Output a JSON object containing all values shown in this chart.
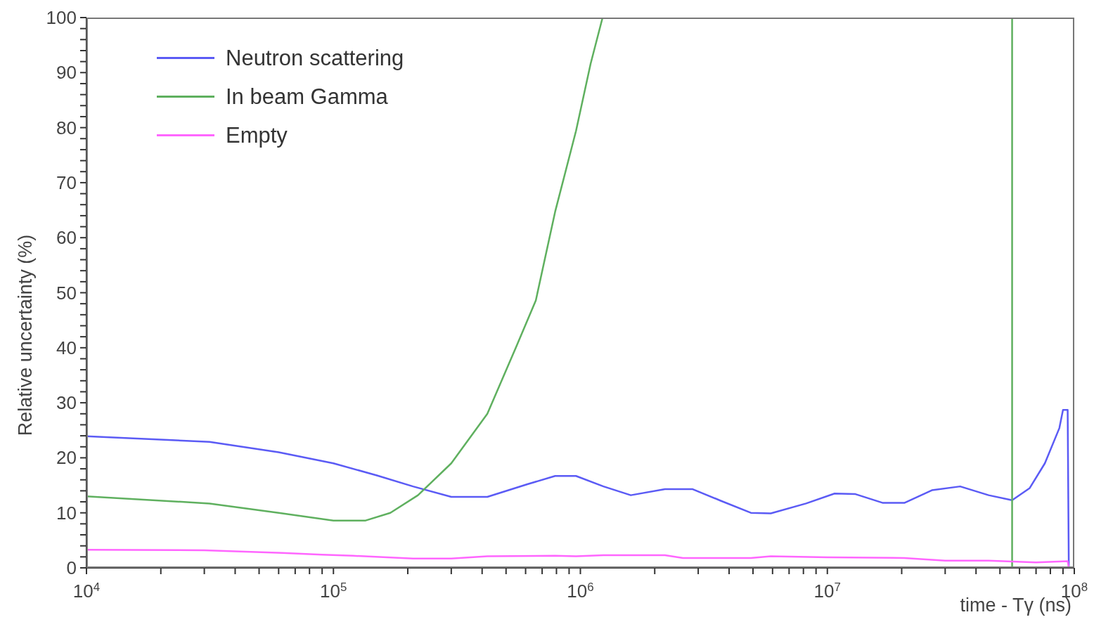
{
  "chart_data": {
    "type": "line",
    "xlabel": "time - Tγ (ns)",
    "ylabel": "Relative uncertainty (%)",
    "log": "x",
    "legend": "top left",
    "marker": "none",
    "line_style": "solid",
    "xlim": [
      10000,
      100000000
    ],
    "ylim": [
      0,
      100
    ],
    "xticks": [
      {
        "value": 10000,
        "label": "10$^{4}$"
      },
      {
        "value": 20000,
        "label": null
      },
      {
        "value": 30000,
        "label": null
      },
      {
        "value": 40000,
        "label": null
      },
      {
        "value": 50000,
        "label": null
      },
      {
        "value": 60000,
        "label": null
      },
      {
        "value": 70000,
        "label": null
      },
      {
        "value": 80000,
        "label": null
      },
      {
        "value": 90000,
        "label": null
      },
      {
        "value": 100000,
        "label": "10$^{5}$"
      },
      {
        "value": 200000,
        "label": null
      },
      {
        "value": 300000,
        "label": null
      },
      {
        "value": 400000,
        "label": null
      },
      {
        "value": 500000,
        "label": null
      },
      {
        "value": 600000,
        "label": null
      },
      {
        "value": 700000,
        "label": null
      },
      {
        "value": 800000,
        "label": null
      },
      {
        "value": 900000,
        "label": null
      },
      {
        "value": 1000000,
        "label": "10$^{6}$"
      },
      {
        "value": 2000000,
        "label": null
      },
      {
        "value": 3000000,
        "label": null
      },
      {
        "value": 4000000,
        "label": null
      },
      {
        "value": 5000000,
        "label": null
      },
      {
        "value": 6000000,
        "label": null
      },
      {
        "value": 7000000,
        "label": null
      },
      {
        "value": 8000000,
        "label": null
      },
      {
        "value": 9000000,
        "label": null
      },
      {
        "value": 10000000,
        "label": "10$^{7}$"
      },
      {
        "value": 20000000,
        "label": null
      },
      {
        "value": 30000000,
        "label": null
      },
      {
        "value": 40000000,
        "label": null
      },
      {
        "value": 50000000,
        "label": null
      },
      {
        "value": 60000000,
        "label": null
      },
      {
        "value": 70000000,
        "label": null
      },
      {
        "value": 80000000,
        "label": null
      },
      {
        "value": 90000000,
        "label": null
      },
      {
        "value": 100000000,
        "label": "10$^{8}$"
      }
    ],
    "yticks": [
      0,
      {
        "value": 2,
        "label": null
      },
      {
        "value": 4,
        "label": null
      },
      {
        "value": 6,
        "label": null
      },
      {
        "value": 8,
        "label": null
      },
      10,
      {
        "value": 12,
        "label": null
      },
      {
        "value": 14,
        "label": null
      },
      {
        "value": 16,
        "label": null
      },
      {
        "value": 18,
        "label": null
      },
      20,
      {
        "value": 22,
        "label": null
      },
      {
        "value": 24,
        "label": null
      },
      {
        "value": 26,
        "label": null
      },
      {
        "value": 28,
        "label": null
      },
      30,
      {
        "value": 32,
        "label": null
      },
      {
        "value": 34,
        "label": null
      },
      {
        "value": 36,
        "label": null
      },
      {
        "value": 38,
        "label": null
      },
      40,
      {
        "value": 42,
        "label": null
      },
      {
        "value": 44,
        "label": null
      },
      {
        "value": 46,
        "label": null
      },
      {
        "value": 48,
        "label": null
      },
      50,
      {
        "value": 52,
        "label": null
      },
      {
        "value": 54,
        "label": null
      },
      {
        "value": 56,
        "label": null
      },
      {
        "value": 58,
        "label": null
      },
      60,
      {
        "value": 62,
        "label": null
      },
      {
        "value": 64,
        "label": null
      },
      {
        "value": 66,
        "label": null
      },
      {
        "value": 68,
        "label": null
      },
      70,
      {
        "value": 72,
        "label": null
      },
      {
        "value": 74,
        "label": null
      },
      {
        "value": 76,
        "label": null
      },
      {
        "value": 78,
        "label": null
      },
      80,
      {
        "value": 82,
        "label": null
      },
      {
        "value": 84,
        "label": null
      },
      {
        "value": 86,
        "label": null
      },
      {
        "value": 88,
        "label": null
      },
      90,
      {
        "value": 92,
        "label": null
      },
      {
        "value": 94,
        "label": null
      },
      {
        "value": 96,
        "label": null
      },
      {
        "value": 98,
        "label": null
      },
      100
    ],
    "series": [
      {
        "name": "Neutron scattering",
        "color": "#5b5bf5",
        "x": [
          10000,
          31500,
          60000,
          100000,
          150000,
          210000,
          300000,
          420000,
          610000,
          790000,
          960000,
          1240000,
          1600000,
          2200000,
          2850000,
          3700000,
          4900000,
          5900000,
          8200000,
          10700000,
          13000000,
          16800000,
          20500000,
          26500000,
          34500000,
          45000000,
          56000000,
          66000000,
          76000000,
          87000000,
          90000000,
          94000000,
          95000000
        ],
        "values": [
          23.9,
          22.9,
          21,
          19,
          16.8,
          14.8,
          12.9,
          12.9,
          15.2,
          16.7,
          16.7,
          14.8,
          13.2,
          14.3,
          14.3,
          12.2,
          10,
          9.9,
          11.7,
          13.5,
          13.4,
          11.8,
          11.8,
          14.1,
          14.8,
          13.2,
          12.3,
          14.5,
          19,
          25.4,
          28.7,
          28.7,
          0
        ]
      },
      {
        "name": "In beam Gamma",
        "color": "#5fb05f",
        "x": [
          10000,
          31500,
          60000,
          100000,
          135000,
          170000,
          220000,
          300000,
          420000,
          550000,
          660000,
          790000,
          960000,
          1100000,
          1230000,
          56000000,
          56000000,
          95000000
        ],
        "values": [
          13,
          11.7,
          10,
          8.6,
          8.6,
          10,
          13.2,
          19,
          28,
          40.2,
          48.6,
          64.7,
          79.4,
          91.6,
          100,
          100,
          0,
          0
        ]
      },
      {
        "name": "Empty",
        "color": "#ff66ff",
        "x": [
          10000,
          30000,
          62000,
          90000,
          120000,
          210000,
          300000,
          420000,
          790000,
          960000,
          1240000,
          2200000,
          2600000,
          4900000,
          5900000,
          10000000,
          20500000,
          30000000,
          45000000,
          70000000,
          94000000,
          95000000
        ],
        "values": [
          3.3,
          3.2,
          2.7,
          2.4,
          2.2,
          1.7,
          1.7,
          2.1,
          2.2,
          2.1,
          2.3,
          2.3,
          1.8,
          1.8,
          2.1,
          1.9,
          1.8,
          1.3,
          1.3,
          1,
          1.2,
          0
        ]
      }
    ]
  }
}
